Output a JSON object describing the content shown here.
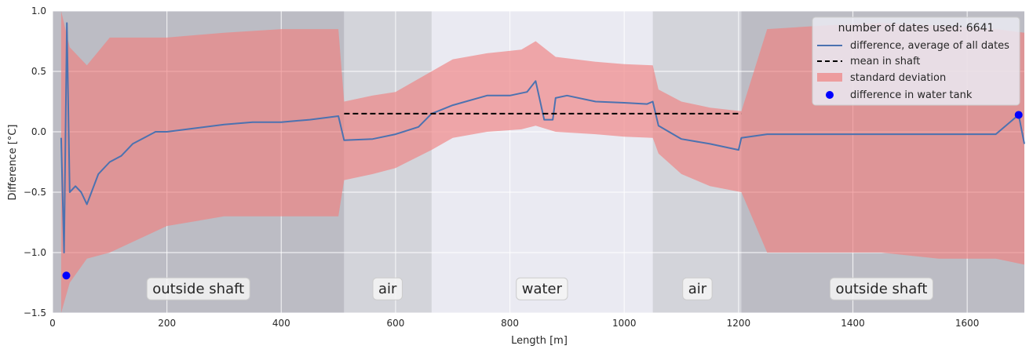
{
  "chart_data": {
    "type": "line",
    "xlabel": "Length [m]",
    "ylabel": "Difference [°C]",
    "xlim": [
      0,
      1700
    ],
    "ylim": [
      -1.5,
      1.0
    ],
    "xticks": [
      0,
      200,
      400,
      600,
      800,
      1000,
      1200,
      1400,
      1600
    ],
    "yticks": [
      -1.5,
      -1.0,
      -0.5,
      0.0,
      0.5,
      1.0
    ],
    "xtick_labels": [
      "0",
      "200",
      "400",
      "600",
      "800",
      "1000",
      "1200",
      "1400",
      "1600"
    ],
    "ytick_labels": [
      "−1.5",
      "−1.0",
      "−0.5",
      "0.0",
      "0.5",
      "1.0"
    ],
    "grid": true,
    "legend_position": "top-right",
    "legend_title": "number of dates used: 6641",
    "regions": [
      {
        "label": "outside shaft",
        "x0": 0,
        "x1": 510,
        "shade": "dark",
        "label_x": 255
      },
      {
        "label": "air",
        "x0": 510,
        "x1": 663,
        "shade": "medium",
        "label_x": 586
      },
      {
        "label": "water",
        "x0": 663,
        "x1": 1050,
        "shade": "none",
        "label_x": 856
      },
      {
        "label": "air",
        "x0": 1050,
        "x1": 1205,
        "shade": "medium",
        "label_x": 1128
      },
      {
        "label": "outside shaft",
        "x0": 1205,
        "x1": 1700,
        "shade": "dark",
        "label_x": 1450
      }
    ],
    "region_label_y": -1.3,
    "series": [
      {
        "name": "difference, average of all dates",
        "kind": "line",
        "color": "#4c72b0",
        "x": [
          15,
          20,
          25,
          30,
          40,
          50,
          60,
          80,
          100,
          120,
          140,
          160,
          180,
          200,
          250,
          300,
          350,
          400,
          450,
          500,
          510,
          560,
          600,
          640,
          663,
          700,
          760,
          800,
          830,
          845,
          860,
          875,
          880,
          900,
          950,
          1000,
          1040,
          1050,
          1060,
          1100,
          1150,
          1200,
          1205,
          1250,
          1300,
          1350,
          1400,
          1450,
          1500,
          1550,
          1600,
          1650,
          1690,
          1700
        ],
        "y": [
          -0.05,
          -1.0,
          0.9,
          -0.5,
          -0.45,
          -0.5,
          -0.6,
          -0.35,
          -0.25,
          -0.2,
          -0.1,
          -0.05,
          0.0,
          0.0,
          0.03,
          0.06,
          0.08,
          0.08,
          0.1,
          0.13,
          -0.07,
          -0.06,
          -0.02,
          0.04,
          0.15,
          0.22,
          0.3,
          0.3,
          0.33,
          0.42,
          0.1,
          0.1,
          0.28,
          0.3,
          0.25,
          0.24,
          0.23,
          0.25,
          0.05,
          -0.06,
          -0.1,
          -0.15,
          -0.05,
          -0.02,
          -0.02,
          -0.02,
          -0.02,
          -0.02,
          -0.02,
          -0.02,
          -0.02,
          -0.02,
          0.14,
          -0.1
        ]
      },
      {
        "name": "mean in shaft",
        "kind": "dashed",
        "color": "#000000",
        "x": [
          510,
          1205
        ],
        "y": [
          0.15,
          0.15
        ]
      },
      {
        "name": "standard deviation",
        "kind": "band",
        "color": "#f08080",
        "x": [
          15,
          30,
          60,
          100,
          200,
          300,
          400,
          500,
          510,
          560,
          600,
          663,
          700,
          760,
          820,
          845,
          880,
          950,
          1000,
          1050,
          1060,
          1100,
          1150,
          1205,
          1250,
          1350,
          1450,
          1550,
          1650,
          1700
        ],
        "upper": [
          1.0,
          0.7,
          0.55,
          0.78,
          0.78,
          0.82,
          0.85,
          0.85,
          0.25,
          0.3,
          0.33,
          0.5,
          0.6,
          0.65,
          0.68,
          0.75,
          0.62,
          0.58,
          0.56,
          0.55,
          0.35,
          0.25,
          0.2,
          0.17,
          0.85,
          0.88,
          0.9,
          0.88,
          0.85,
          0.82
        ],
        "lower": [
          -1.5,
          -1.25,
          -1.05,
          -1.0,
          -0.78,
          -0.7,
          -0.7,
          -0.7,
          -0.4,
          -0.35,
          -0.3,
          -0.15,
          -0.05,
          0.0,
          0.02,
          0.05,
          0.0,
          -0.02,
          -0.04,
          -0.05,
          -0.18,
          -0.35,
          -0.45,
          -0.5,
          -1.0,
          -1.0,
          -1.0,
          -1.05,
          -1.05,
          -1.1
        ]
      },
      {
        "name": "difference in water tank",
        "kind": "points",
        "color": "#0000ff",
        "x": [
          24,
          1690
        ],
        "y": [
          -1.19,
          0.14
        ]
      }
    ]
  }
}
